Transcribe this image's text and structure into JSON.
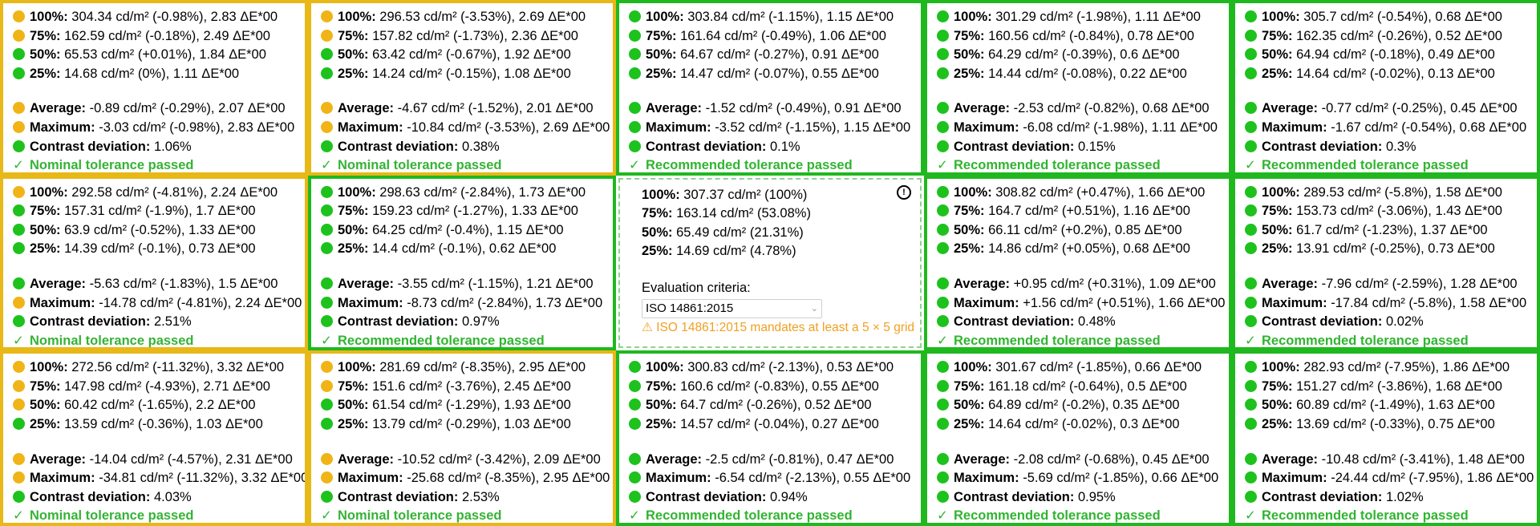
{
  "cells": [
    {
      "status": "yellow",
      "lines": [
        {
          "dot": "yellow",
          "label": "100%:",
          "text": " 304.34 cd/m² (-0.98%), 2.83 ΔE*00"
        },
        {
          "dot": "yellow",
          "label": "75%:",
          "text": " 162.59 cd/m² (-0.18%), 2.49 ΔE*00"
        },
        {
          "dot": "green",
          "label": "50%:",
          "text": " 65.53 cd/m² (+0.01%), 1.84 ΔE*00"
        },
        {
          "dot": "green",
          "label": "25%:",
          "text": " 14.68 cd/m² (0%), 1.11 ΔE*00"
        }
      ],
      "summary": [
        {
          "dot": "yellow",
          "label": "Average:",
          "text": " -0.89 cd/m² (-0.29%), 2.07 ΔE*00"
        },
        {
          "dot": "yellow",
          "label": "Maximum:",
          "text": " -3.03 cd/m² (-0.98%), 2.83 ΔE*00"
        },
        {
          "dot": "green",
          "label": "Contrast deviation:",
          "text": " 1.06%"
        }
      ],
      "result": "Nominal tolerance passed"
    },
    {
      "status": "yellow",
      "lines": [
        {
          "dot": "yellow",
          "label": "100%:",
          "text": " 296.53 cd/m² (-3.53%), 2.69 ΔE*00"
        },
        {
          "dot": "yellow",
          "label": "75%:",
          "text": " 157.82 cd/m² (-1.73%), 2.36 ΔE*00"
        },
        {
          "dot": "green",
          "label": "50%:",
          "text": " 63.42 cd/m² (-0.67%), 1.92 ΔE*00"
        },
        {
          "dot": "green",
          "label": "25%:",
          "text": " 14.24 cd/m² (-0.15%), 1.08 ΔE*00"
        }
      ],
      "summary": [
        {
          "dot": "yellow",
          "label": "Average:",
          "text": " -4.67 cd/m² (-1.52%), 2.01 ΔE*00"
        },
        {
          "dot": "yellow",
          "label": "Maximum:",
          "text": " -10.84 cd/m² (-3.53%), 2.69 ΔE*00"
        },
        {
          "dot": "green",
          "label": "Contrast deviation:",
          "text": " 0.38%"
        }
      ],
      "result": "Nominal tolerance passed"
    },
    {
      "status": "green",
      "lines": [
        {
          "dot": "green",
          "label": "100%:",
          "text": " 303.84 cd/m² (-1.15%), 1.15 ΔE*00"
        },
        {
          "dot": "green",
          "label": "75%:",
          "text": " 161.64 cd/m² (-0.49%), 1.06 ΔE*00"
        },
        {
          "dot": "green",
          "label": "50%:",
          "text": " 64.67 cd/m² (-0.27%), 0.91 ΔE*00"
        },
        {
          "dot": "green",
          "label": "25%:",
          "text": " 14.47 cd/m² (-0.07%), 0.55 ΔE*00"
        }
      ],
      "summary": [
        {
          "dot": "green",
          "label": "Average:",
          "text": " -1.52 cd/m² (-0.49%), 0.91 ΔE*00"
        },
        {
          "dot": "green",
          "label": "Maximum:",
          "text": " -3.52 cd/m² (-1.15%), 1.15 ΔE*00"
        },
        {
          "dot": "green",
          "label": "Contrast deviation:",
          "text": " 0.1%"
        }
      ],
      "result": "Recommended tolerance passed"
    },
    {
      "status": "green",
      "lines": [
        {
          "dot": "green",
          "label": "100%:",
          "text": " 301.29 cd/m² (-1.98%), 1.11 ΔE*00"
        },
        {
          "dot": "green",
          "label": "75%:",
          "text": " 160.56 cd/m² (-0.84%), 0.78 ΔE*00"
        },
        {
          "dot": "green",
          "label": "50%:",
          "text": " 64.29 cd/m² (-0.39%), 0.6 ΔE*00"
        },
        {
          "dot": "green",
          "label": "25%:",
          "text": " 14.44 cd/m² (-0.08%), 0.22 ΔE*00"
        }
      ],
      "summary": [
        {
          "dot": "green",
          "label": "Average:",
          "text": " -2.53 cd/m² (-0.82%), 0.68 ΔE*00"
        },
        {
          "dot": "green",
          "label": "Maximum:",
          "text": " -6.08 cd/m² (-1.98%), 1.11 ΔE*00"
        },
        {
          "dot": "green",
          "label": "Contrast deviation:",
          "text": " 0.15%"
        }
      ],
      "result": "Recommended tolerance passed"
    },
    {
      "status": "green",
      "lines": [
        {
          "dot": "green",
          "label": "100%:",
          "text": " 305.7 cd/m² (-0.54%), 0.68 ΔE*00"
        },
        {
          "dot": "green",
          "label": "75%:",
          "text": " 162.35 cd/m² (-0.26%), 0.52 ΔE*00"
        },
        {
          "dot": "green",
          "label": "50%:",
          "text": " 64.94 cd/m² (-0.18%), 0.49 ΔE*00"
        },
        {
          "dot": "green",
          "label": "25%:",
          "text": " 14.64 cd/m² (-0.02%), 0.13 ΔE*00"
        }
      ],
      "summary": [
        {
          "dot": "green",
          "label": "Average:",
          "text": " -0.77 cd/m² (-0.25%), 0.45 ΔE*00"
        },
        {
          "dot": "green",
          "label": "Maximum:",
          "text": " -1.67 cd/m² (-0.54%), 0.68 ΔE*00"
        },
        {
          "dot": "green",
          "label": "Contrast deviation:",
          "text": " 0.3%"
        }
      ],
      "result": "Recommended tolerance passed"
    },
    {
      "status": "yellow",
      "lines": [
        {
          "dot": "yellow",
          "label": "100%:",
          "text": " 292.58 cd/m² (-4.81%), 2.24 ΔE*00"
        },
        {
          "dot": "green",
          "label": "75%:",
          "text": " 157.31 cd/m² (-1.9%), 1.7 ΔE*00"
        },
        {
          "dot": "green",
          "label": "50%:",
          "text": " 63.9 cd/m² (-0.52%), 1.33 ΔE*00"
        },
        {
          "dot": "green",
          "label": "25%:",
          "text": " 14.39 cd/m² (-0.1%), 0.73 ΔE*00"
        }
      ],
      "summary": [
        {
          "dot": "green",
          "label": "Average:",
          "text": " -5.63 cd/m² (-1.83%), 1.5 ΔE*00"
        },
        {
          "dot": "yellow",
          "label": "Maximum:",
          "text": " -14.78 cd/m² (-4.81%), 2.24 ΔE*00"
        },
        {
          "dot": "green",
          "label": "Contrast deviation:",
          "text": " 2.51%"
        }
      ],
      "result": "Nominal tolerance passed"
    },
    {
      "status": "green",
      "lines": [
        {
          "dot": "green",
          "label": "100%:",
          "text": " 298.63 cd/m² (-2.84%), 1.73 ΔE*00"
        },
        {
          "dot": "green",
          "label": "75%:",
          "text": " 159.23 cd/m² (-1.27%), 1.33 ΔE*00"
        },
        {
          "dot": "green",
          "label": "50%:",
          "text": " 64.25 cd/m² (-0.4%), 1.15 ΔE*00"
        },
        {
          "dot": "green",
          "label": "25%:",
          "text": " 14.4 cd/m² (-0.1%), 0.62 ΔE*00"
        }
      ],
      "summary": [
        {
          "dot": "green",
          "label": "Average:",
          "text": " -3.55 cd/m² (-1.15%), 1.21 ΔE*00"
        },
        {
          "dot": "green",
          "label": "Maximum:",
          "text": " -8.73 cd/m² (-2.84%), 1.73 ΔE*00"
        },
        {
          "dot": "green",
          "label": "Contrast deviation:",
          "text": " 0.97%"
        }
      ],
      "result": "Recommended tolerance passed"
    },
    {
      "center": true,
      "ref_lines": [
        {
          "label": "100%:",
          "text": " 307.37 cd/m² (100%)"
        },
        {
          "label": "75%:",
          "text": " 163.14 cd/m² (53.08%)"
        },
        {
          "label": "50%:",
          "text": " 65.49 cd/m² (21.31%)"
        },
        {
          "label": "25%:",
          "text": " 14.69 cd/m² (4.78%)"
        }
      ],
      "criteria_label": "Evaluation criteria:",
      "criteria_value": "ISO 14861:2015",
      "warning": "⚠ ISO 14861:2015 mandates at least a 5 × 5 grid"
    },
    {
      "status": "green",
      "lines": [
        {
          "dot": "green",
          "label": "100%:",
          "text": " 308.82 cd/m² (+0.47%), 1.66 ΔE*00"
        },
        {
          "dot": "green",
          "label": "75%:",
          "text": " 164.7 cd/m² (+0.51%), 1.16 ΔE*00"
        },
        {
          "dot": "green",
          "label": "50%:",
          "text": " 66.11 cd/m² (+0.2%), 0.85 ΔE*00"
        },
        {
          "dot": "green",
          "label": "25%:",
          "text": " 14.86 cd/m² (+0.05%), 0.68 ΔE*00"
        }
      ],
      "summary": [
        {
          "dot": "green",
          "label": "Average:",
          "text": " +0.95 cd/m² (+0.31%), 1.09 ΔE*00"
        },
        {
          "dot": "green",
          "label": "Maximum:",
          "text": " +1.56 cd/m² (+0.51%), 1.66 ΔE*00"
        },
        {
          "dot": "green",
          "label": "Contrast deviation:",
          "text": " 0.48%"
        }
      ],
      "result": "Recommended tolerance passed"
    },
    {
      "status": "green",
      "lines": [
        {
          "dot": "green",
          "label": "100%:",
          "text": " 289.53 cd/m² (-5.8%), 1.58 ΔE*00"
        },
        {
          "dot": "green",
          "label": "75%:",
          "text": " 153.73 cd/m² (-3.06%), 1.43 ΔE*00"
        },
        {
          "dot": "green",
          "label": "50%:",
          "text": " 61.7 cd/m² (-1.23%), 1.37 ΔE*00"
        },
        {
          "dot": "green",
          "label": "25%:",
          "text": " 13.91 cd/m² (-0.25%), 0.73 ΔE*00"
        }
      ],
      "summary": [
        {
          "dot": "green",
          "label": "Average:",
          "text": " -7.96 cd/m² (-2.59%), 1.28 ΔE*00"
        },
        {
          "dot": "green",
          "label": "Maximum:",
          "text": " -17.84 cd/m² (-5.8%), 1.58 ΔE*00"
        },
        {
          "dot": "green",
          "label": "Contrast deviation:",
          "text": " 0.02%"
        }
      ],
      "result": "Recommended tolerance passed"
    },
    {
      "status": "yellow",
      "lines": [
        {
          "dot": "yellow",
          "label": "100%:",
          "text": " 272.56 cd/m² (-11.32%), 3.32 ΔE*00"
        },
        {
          "dot": "yellow",
          "label": "75%:",
          "text": " 147.98 cd/m² (-4.93%), 2.71 ΔE*00"
        },
        {
          "dot": "yellow",
          "label": "50%:",
          "text": " 60.42 cd/m² (-1.65%), 2.2 ΔE*00"
        },
        {
          "dot": "green",
          "label": "25%:",
          "text": " 13.59 cd/m² (-0.36%), 1.03 ΔE*00"
        }
      ],
      "summary": [
        {
          "dot": "yellow",
          "label": "Average:",
          "text": " -14.04 cd/m² (-4.57%), 2.31 ΔE*00"
        },
        {
          "dot": "yellow",
          "label": "Maximum:",
          "text": " -34.81 cd/m² (-11.32%), 3.32 ΔE*00"
        },
        {
          "dot": "green",
          "label": "Contrast deviation:",
          "text": " 4.03%"
        }
      ],
      "result": "Nominal tolerance passed"
    },
    {
      "status": "yellow",
      "lines": [
        {
          "dot": "yellow",
          "label": "100%:",
          "text": " 281.69 cd/m² (-8.35%), 2.95 ΔE*00"
        },
        {
          "dot": "yellow",
          "label": "75%:",
          "text": " 151.6 cd/m² (-3.76%), 2.45 ΔE*00"
        },
        {
          "dot": "green",
          "label": "50%:",
          "text": " 61.54 cd/m² (-1.29%), 1.93 ΔE*00"
        },
        {
          "dot": "green",
          "label": "25%:",
          "text": " 13.79 cd/m² (-0.29%), 1.03 ΔE*00"
        }
      ],
      "summary": [
        {
          "dot": "yellow",
          "label": "Average:",
          "text": " -10.52 cd/m² (-3.42%), 2.09 ΔE*00"
        },
        {
          "dot": "yellow",
          "label": "Maximum:",
          "text": " -25.68 cd/m² (-8.35%), 2.95 ΔE*00"
        },
        {
          "dot": "green",
          "label": "Contrast deviation:",
          "text": " 2.53%"
        }
      ],
      "result": "Nominal tolerance passed"
    },
    {
      "status": "green",
      "lines": [
        {
          "dot": "green",
          "label": "100%:",
          "text": " 300.83 cd/m² (-2.13%), 0.53 ΔE*00"
        },
        {
          "dot": "green",
          "label": "75%:",
          "text": " 160.6 cd/m² (-0.83%), 0.55 ΔE*00"
        },
        {
          "dot": "green",
          "label": "50%:",
          "text": " 64.7 cd/m² (-0.26%), 0.52 ΔE*00"
        },
        {
          "dot": "green",
          "label": "25%:",
          "text": " 14.57 cd/m² (-0.04%), 0.27 ΔE*00"
        }
      ],
      "summary": [
        {
          "dot": "green",
          "label": "Average:",
          "text": " -2.5 cd/m² (-0.81%), 0.47 ΔE*00"
        },
        {
          "dot": "green",
          "label": "Maximum:",
          "text": " -6.54 cd/m² (-2.13%), 0.55 ΔE*00"
        },
        {
          "dot": "green",
          "label": "Contrast deviation:",
          "text": " 0.94%"
        }
      ],
      "result": "Recommended tolerance passed"
    },
    {
      "status": "green",
      "lines": [
        {
          "dot": "green",
          "label": "100%:",
          "text": " 301.67 cd/m² (-1.85%), 0.66 ΔE*00"
        },
        {
          "dot": "green",
          "label": "75%:",
          "text": " 161.18 cd/m² (-0.64%), 0.5 ΔE*00"
        },
        {
          "dot": "green",
          "label": "50%:",
          "text": " 64.89 cd/m² (-0.2%), 0.35 ΔE*00"
        },
        {
          "dot": "green",
          "label": "25%:",
          "text": " 14.64 cd/m² (-0.02%), 0.3 ΔE*00"
        }
      ],
      "summary": [
        {
          "dot": "green",
          "label": "Average:",
          "text": " -2.08 cd/m² (-0.68%), 0.45 ΔE*00"
        },
        {
          "dot": "green",
          "label": "Maximum:",
          "text": " -5.69 cd/m² (-1.85%), 0.66 ΔE*00"
        },
        {
          "dot": "green",
          "label": "Contrast deviation:",
          "text": " 0.95%"
        }
      ],
      "result": "Recommended tolerance passed"
    },
    {
      "status": "green",
      "lines": [
        {
          "dot": "green",
          "label": "100%:",
          "text": " 282.93 cd/m² (-7.95%), 1.86 ΔE*00"
        },
        {
          "dot": "green",
          "label": "75%:",
          "text": " 151.27 cd/m² (-3.86%), 1.68 ΔE*00"
        },
        {
          "dot": "green",
          "label": "50%:",
          "text": " 60.89 cd/m² (-1.49%), 1.63 ΔE*00"
        },
        {
          "dot": "green",
          "label": "25%:",
          "text": " 13.69 cd/m² (-0.33%), 0.75 ΔE*00"
        }
      ],
      "summary": [
        {
          "dot": "green",
          "label": "Average:",
          "text": " -10.48 cd/m² (-3.41%), 1.48 ΔE*00"
        },
        {
          "dot": "green",
          "label": "Maximum:",
          "text": " -24.44 cd/m² (-7.95%), 1.86 ΔE*00"
        },
        {
          "dot": "green",
          "label": "Contrast deviation:",
          "text": " 1.02%"
        }
      ],
      "result": "Recommended tolerance passed"
    }
  ],
  "colors": {
    "green_border": "#1fb81f",
    "yellow_border": "#e7b817",
    "green_dot": "#1dc21d",
    "yellow_dot": "#f0b417",
    "pass_text": "#2fb52f",
    "warning": "#f0a020"
  },
  "icons": {
    "check": "✓",
    "info": "info-icon"
  }
}
